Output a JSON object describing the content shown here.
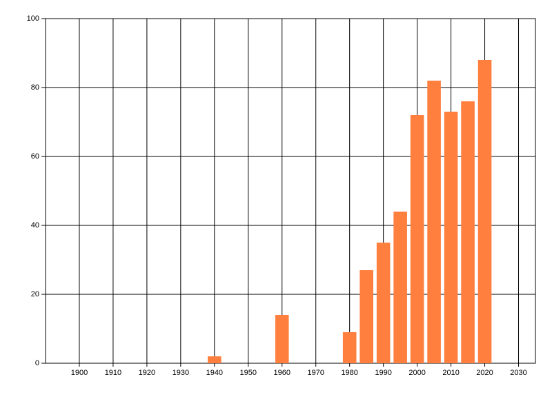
{
  "chart_data": {
    "type": "bar",
    "x": [
      1940,
      1960,
      1980,
      1985,
      1990,
      1995,
      2000,
      2005,
      2010,
      2015,
      2020
    ],
    "values": [
      2,
      14,
      9,
      27,
      35,
      44,
      72,
      82,
      73,
      76,
      88
    ],
    "color": "#ff7f3f",
    "xlim": [
      1890,
      2035
    ],
    "xticks": [
      1900,
      1910,
      1920,
      1930,
      1940,
      1950,
      1960,
      1970,
      1980,
      1990,
      2000,
      2010,
      2020,
      2030
    ],
    "ylim": [
      0,
      100
    ],
    "yticks": [
      0,
      20,
      40,
      60,
      80,
      100
    ],
    "grid": true
  }
}
